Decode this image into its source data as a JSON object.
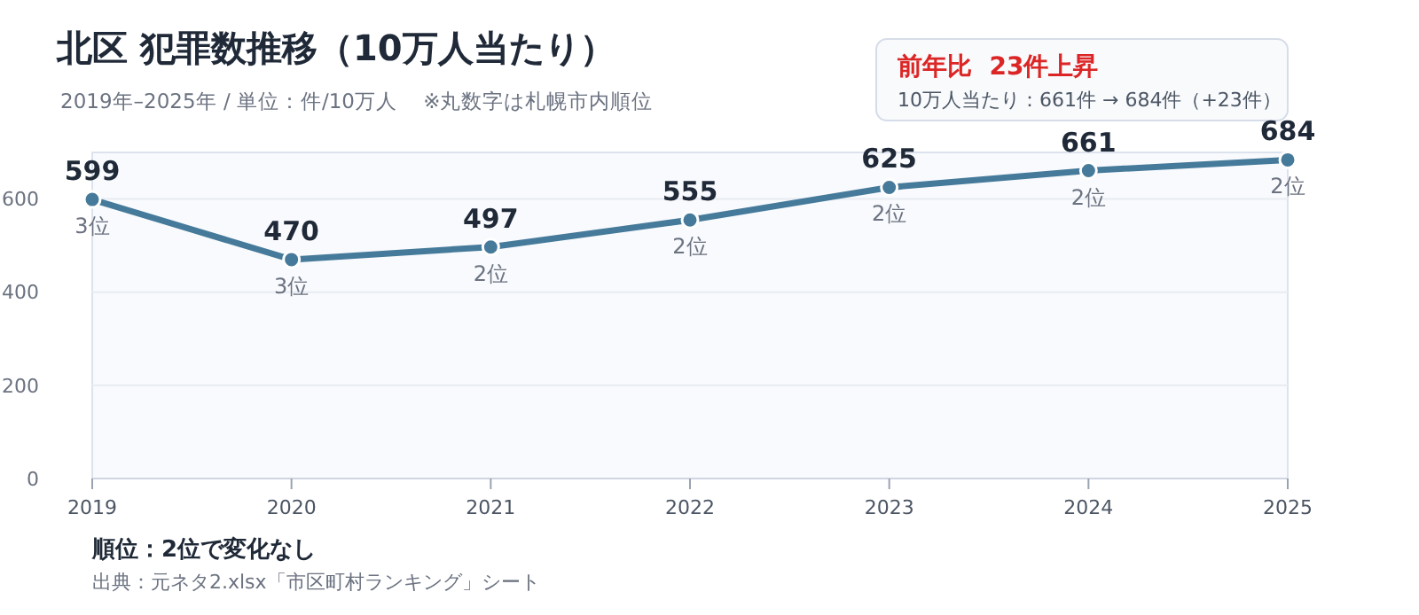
{
  "chart_data": {
    "type": "line",
    "title": "北区  犯罪数推移（10万人当たり）",
    "subtitle": "2019年–2025年 / 単位：件/10万人    ※丸数字は札幌市内順位",
    "categories": [
      "2019",
      "2020",
      "2021",
      "2022",
      "2023",
      "2024",
      "2025"
    ],
    "series": [
      {
        "color": "#467a9a",
        "values": [
          599,
          470,
          497,
          555,
          625,
          661,
          684
        ]
      }
    ],
    "ylim": [
      0,
      700
    ],
    "yticks": [
      0,
      200,
      400,
      600
    ],
    "grid": "y",
    "marker": "circle",
    "line_style": "solid",
    "data_labels": true,
    "annotations": [
      {
        "text": "3位",
        "x": "2019",
        "y": 599
      },
      {
        "text": "3位",
        "x": "2020",
        "y": 470
      },
      {
        "text": "2位",
        "x": "2021",
        "y": 497
      },
      {
        "text": "2位",
        "x": "2022",
        "y": 555
      },
      {
        "text": "2位",
        "x": "2023",
        "y": 625
      },
      {
        "text": "2位",
        "x": "2024",
        "y": 661
      },
      {
        "text": "2位",
        "x": "2025",
        "y": 684
      },
      "前年比  23件上昇",
      "10万人当たり：661件 → 684件（+23件）",
      "順位：2位で変化なし",
      "出典：元ネタ2.xlsx「市区町村ランキング」シート"
    ]
  }
}
